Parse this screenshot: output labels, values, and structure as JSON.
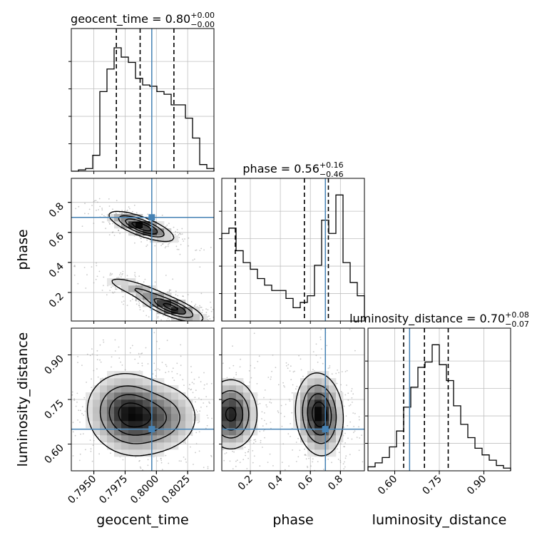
{
  "chart_data": {
    "type": "corner",
    "parameters": [
      "geocent_time",
      "phase",
      "luminosity_distance"
    ],
    "truths": {
      "geocent_time": 0.79963,
      "phase": 0.7,
      "luminosity_distance": 0.65
    },
    "titles": {
      "geocent_time": {
        "name": "geocent_time",
        "median": "0.80",
        "plus": "+0.00",
        "minus": "−0.00"
      },
      "phase": {
        "name": "phase",
        "median": "0.56",
        "plus": "+0.16",
        "minus": "−0.46"
      },
      "luminosity_distance": {
        "name": "luminosity_distance",
        "median": "0.70",
        "plus": "+0.08",
        "minus": "−0.07"
      }
    },
    "axis_labels": {
      "geocent_time": "geocent_time",
      "phase": "phase",
      "luminosity_distance": "luminosity_distance"
    },
    "ranges": {
      "geocent_time": [
        0.7932,
        0.8046
      ],
      "phase": [
        0.01,
        0.96
      ],
      "luminosity_distance": [
        0.51,
        0.99
      ]
    },
    "ticks": {
      "geocent_time": [
        {
          "v": 0.795,
          "label": "0.7950"
        },
        {
          "v": 0.7975,
          "label": "0.7975"
        },
        {
          "v": 0.8,
          "label": "0.8000"
        },
        {
          "v": 0.8025,
          "label": "0.8025"
        }
      ],
      "phase": [
        {
          "v": 0.2,
          "label": "0.2"
        },
        {
          "v": 0.4,
          "label": "0.4"
        },
        {
          "v": 0.6,
          "label": "0.6"
        },
        {
          "v": 0.8,
          "label": "0.8"
        }
      ],
      "luminosity_distance": [
        {
          "v": 0.6,
          "label": "0.60"
        },
        {
          "v": 0.75,
          "label": "0.75"
        },
        {
          "v": 0.9,
          "label": "0.90"
        }
      ]
    },
    "quantiles": {
      "geocent_time": [
        0.7968,
        0.7987,
        0.8014
      ],
      "phase": [
        0.1,
        0.56,
        0.72
      ],
      "luminosity_distance": [
        0.63,
        0.7,
        0.78
      ]
    },
    "histograms": {
      "geocent_time": {
        "edges_range": [
          0.7932,
          0.8046
        ],
        "counts": [
          0,
          0.01,
          0.02,
          0.12,
          0.6,
          0.77,
          0.93,
          0.86,
          0.82,
          0.7,
          0.65,
          0.64,
          0.6,
          0.58,
          0.5,
          0.5,
          0.4,
          0.25,
          0.05,
          0.02
        ]
      },
      "phase": {
        "edges_range": [
          0.01,
          0.96
        ],
        "counts": [
          0.66,
          0.7,
          0.53,
          0.44,
          0.39,
          0.32,
          0.27,
          0.23,
          0.23,
          0.17,
          0.1,
          0.14,
          0.19,
          0.42,
          0.76,
          0.66,
          0.95,
          0.44,
          0.29,
          0.19
        ]
      },
      "luminosity_distance": {
        "edges_range": [
          0.51,
          0.99
        ],
        "counts": [
          0.03,
          0.06,
          0.1,
          0.18,
          0.3,
          0.48,
          0.63,
          0.78,
          0.82,
          0.95,
          0.8,
          0.68,
          0.49,
          0.35,
          0.25,
          0.17,
          0.12,
          0.08,
          0.04,
          0.02
        ]
      }
    },
    "pairs": [
      {
        "x": "geocent_time",
        "y": "phase",
        "modes": [
          {
            "x": 0.7988,
            "y": 0.64,
            "sx": 0.0013,
            "sy": 0.05,
            "w": 1.0,
            "rho": -0.75
          },
          {
            "x": 0.8012,
            "y": 0.1,
            "sx": 0.0013,
            "sy": 0.05,
            "w": 0.9,
            "rho": -0.75
          },
          {
            "x": 0.7985,
            "y": 0.22,
            "sx": 0.0015,
            "sy": 0.05,
            "w": 0.35,
            "rho": -0.8
          }
        ]
      },
      {
        "x": "geocent_time",
        "y": "luminosity_distance",
        "modes": [
          {
            "x": 0.7978,
            "y": 0.7,
            "sx": 0.0017,
            "sy": 0.07,
            "w": 1.0,
            "rho": -0.1
          },
          {
            "x": 0.8008,
            "y": 0.69,
            "sx": 0.0015,
            "sy": 0.06,
            "w": 0.45,
            "rho": 0.0
          }
        ]
      },
      {
        "x": "phase",
        "y": "luminosity_distance",
        "modes": [
          {
            "x": 0.66,
            "y": 0.7,
            "sx": 0.08,
            "sy": 0.07,
            "w": 1.0,
            "rho": -0.1
          },
          {
            "x": 0.07,
            "y": 0.7,
            "sx": 0.09,
            "sy": 0.06,
            "w": 0.9,
            "rho": 0.0
          }
        ]
      }
    ],
    "colors": {
      "truth": "#4682b4",
      "hist": "#000000",
      "quantile": "#000000",
      "grid": "#c0c0c0"
    }
  }
}
